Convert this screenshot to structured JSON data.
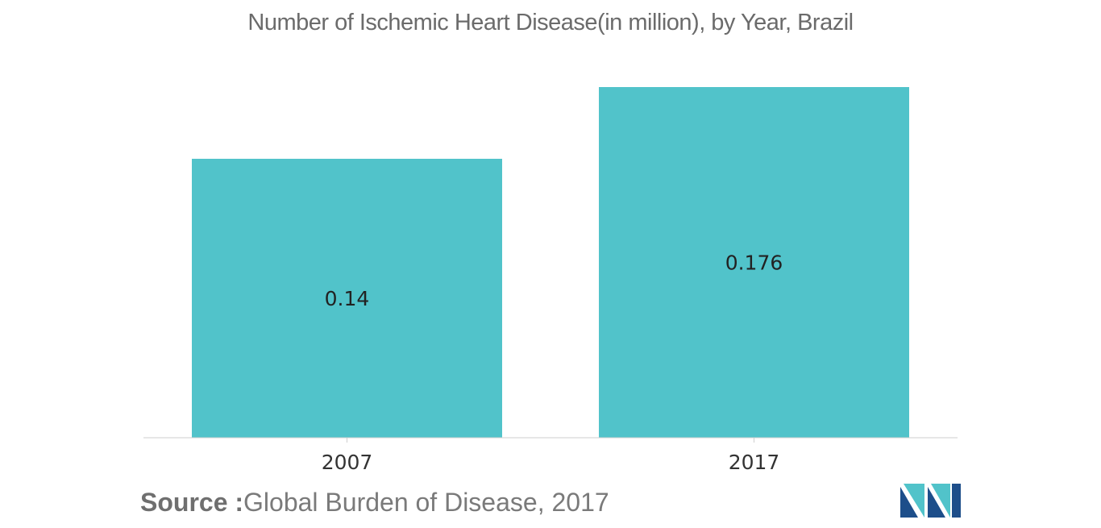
{
  "header": {
    "title": "Number of Ischemic Heart Disease(in million), by Year, Brazil"
  },
  "chart_data": {
    "type": "bar",
    "title": "Number of Ischemic Heart Disease(in million), by Year, Brazil",
    "categories": [
      "2007",
      "2017"
    ],
    "values": [
      0.14,
      0.176
    ],
    "value_labels": [
      "0.14",
      "0.176"
    ],
    "xlabel": "",
    "ylabel": "",
    "ylim": [
      0,
      0.176
    ],
    "grid": false,
    "legend": "none",
    "bar_color": "#51c3ca"
  },
  "footer": {
    "source_label": "Source :",
    "source_text": "Global Burden of Disease, 2017"
  },
  "logo": {
    "icon": "mordor-logo-icon",
    "colors": [
      "#1d4e8a",
      "#51c3ca"
    ]
  }
}
